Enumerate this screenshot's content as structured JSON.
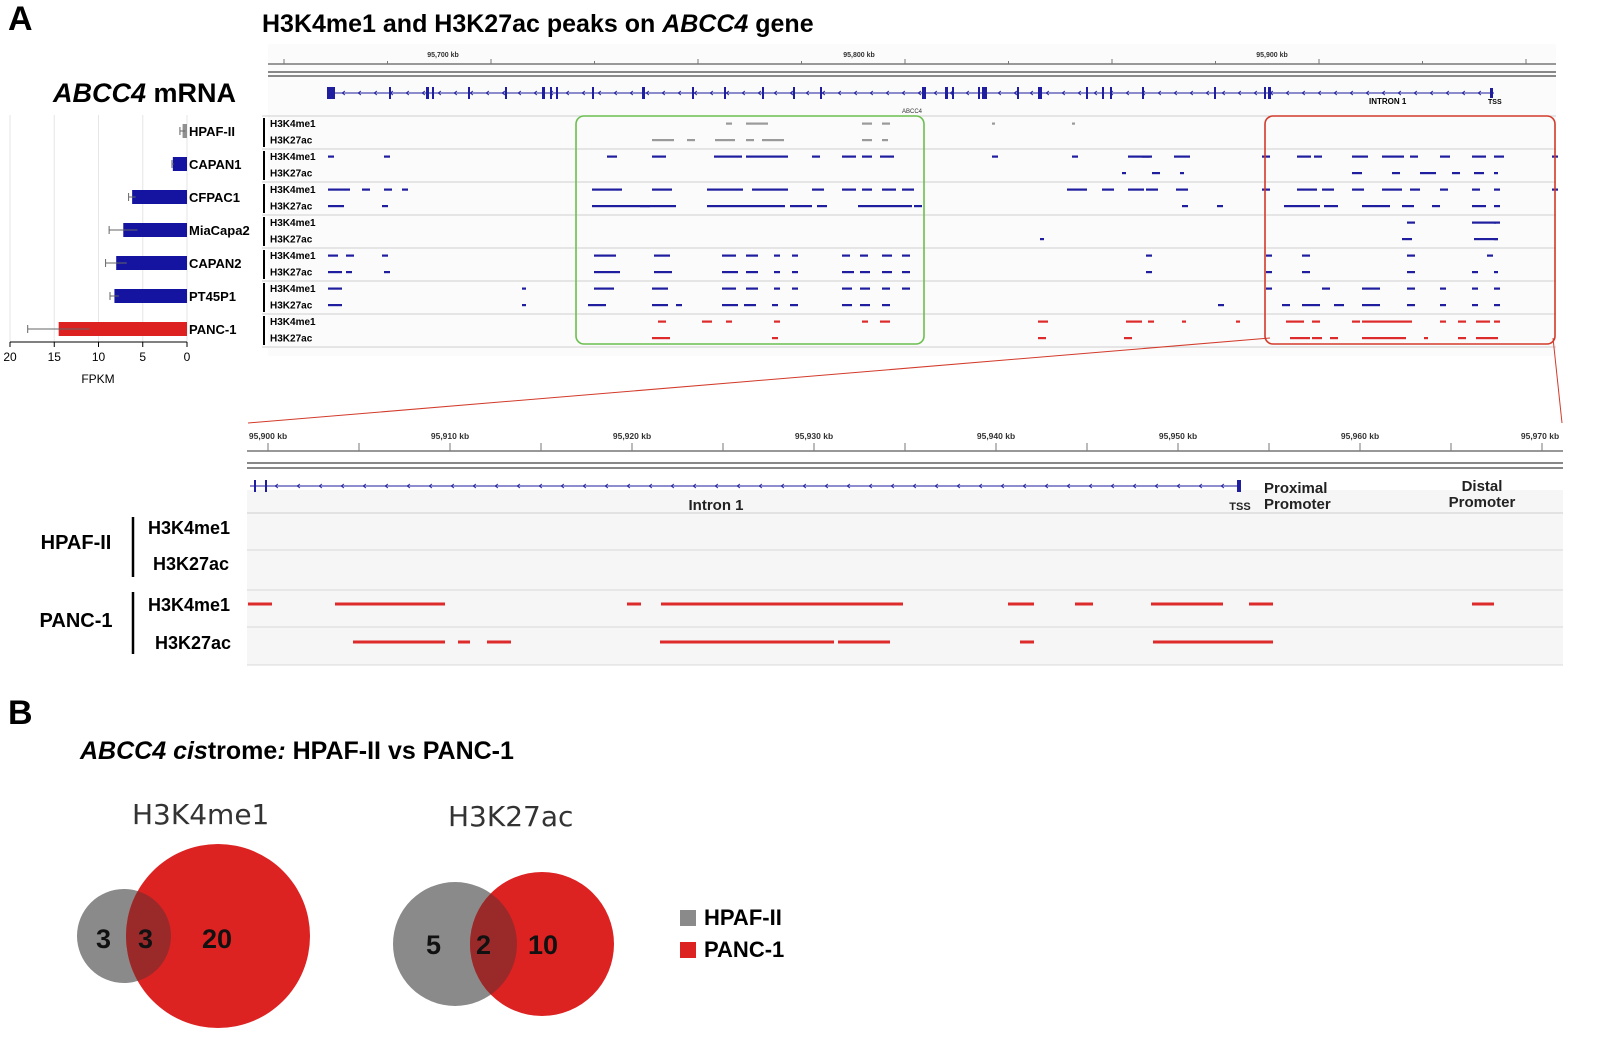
{
  "panel_a": {
    "letter": "A",
    "title_prefix": "H3K4me1 and H3K27ac peaks on ",
    "title_gene": "ABCC4",
    "title_suffix": " gene",
    "mrna_gene": "ABCC4",
    "mrna_suffix": " mRNA",
    "mrna_chart": {
      "type": "bar",
      "categories": [
        "HPAF-II",
        "CAPAN1",
        "CFPAC1",
        "MiaCapa2",
        "CAPAN2",
        "PT45P1",
        "PANC-1"
      ],
      "values": [
        0.5,
        1.6,
        6.2,
        7.2,
        8.0,
        8.2,
        14.5
      ],
      "errors": [
        0.3,
        0.1,
        0.4,
        1.6,
        1.2,
        0.5,
        3.5
      ],
      "colors": [
        "#909090",
        "#1414a0",
        "#1414a0",
        "#1414a0",
        "#1414a0",
        "#1414a0",
        "#dd2020"
      ],
      "xlabel": "FPKM",
      "ticks": [
        "20",
        "15",
        "10",
        "5",
        "0"
      ],
      "xlim": [
        0,
        20
      ],
      "reversed": true
    },
    "kb_ticks": [
      "95,700 kb",
      "95,800 kb",
      "95,900 kb"
    ],
    "gene_name": "ABCC4",
    "intron_label": "INTRON 1",
    "tss_label": "TSS",
    "track_labels": [
      "H3K4me1",
      "H3K27ac"
    ],
    "track_color_normal": "#1e1e9e",
    "track_color_hpaf": "#9a9a9a",
    "track_color_panc": "#dd2a2a",
    "box_green": "#6bbf4f",
    "box_red": "#d23a2a"
  },
  "zoom": {
    "kb_ticks": [
      "95,900 kb",
      "95,910 kb",
      "95,920 kb",
      "95,930 kb",
      "95,940 kb",
      "95,950 kb",
      "95,960 kb",
      "95,970 kb"
    ],
    "intron_label": "Intron 1",
    "tss_label": "TSS",
    "proximal_label": "Proximal Promoter",
    "distal_label": "Distal Promoter",
    "groups": [
      {
        "name": "HPAF-II",
        "tracks": [
          "H3K4me1",
          "H3K27ac"
        ]
      },
      {
        "name": "PANC-1",
        "tracks": [
          "H3K4me1",
          "H3K27ac"
        ]
      }
    ]
  },
  "panel_b": {
    "letter": "B",
    "title_gene": "ABCC4",
    "title_cis": "cis",
    "title_rest": "trome",
    "title_colon": ":",
    "title_vs": " HPAF-II vs PANC-1",
    "venn": [
      {
        "title": "H3K4me1",
        "only_hpaf": "3",
        "shared": "3",
        "only_panc": "20"
      },
      {
        "title": "H3K27ac",
        "only_hpaf": "5",
        "shared": "2",
        "only_panc": "10"
      }
    ],
    "legend": [
      {
        "label": "HPAF-II",
        "color": "#8a8a8a"
      },
      {
        "label": "PANC-1",
        "color": "#dd2222"
      }
    ]
  }
}
